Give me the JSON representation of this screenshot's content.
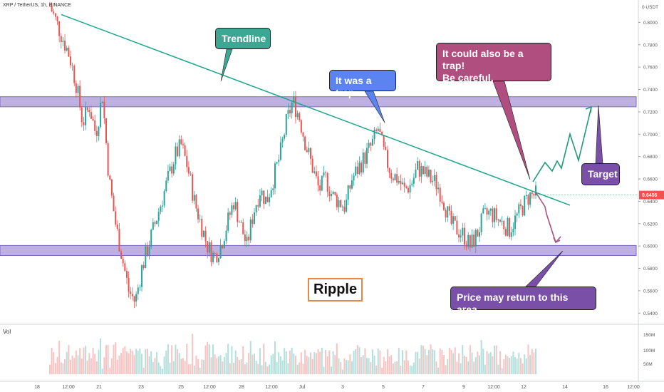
{
  "symbol": "XRP / TetherUS, 1h, BINANCE",
  "price_axis_currency": "USDT",
  "volume_label": "Vol",
  "annotations": {
    "trendline": "Trendline",
    "trap": "It was a trap",
    "also_trap_line1": "It could also be a trap!",
    "also_trap_line2": "Be careful.",
    "target": "Target",
    "return_area": "Price may return to this area",
    "ripple": "Ripple"
  },
  "colors": {
    "up": "#26a69a",
    "down": "#ef5350",
    "trendline": "#1aa58e",
    "zone_fill": "#b3a3dc",
    "zone_stroke": "#7b68c0",
    "trendline_label": "#3ca893",
    "trap_label": "#5b84f0",
    "also_trap_label": "#b04f7f",
    "target_label": "#7a4fa8",
    "return_label": "#7a4fa8",
    "green_projection": "#1f9b78",
    "red_projection": "#b04f7f",
    "price_badge": "#ef5350"
  },
  "chart_data": {
    "type": "candlestick",
    "y_axis": {
      "min": 0.53,
      "max": 0.82,
      "ticks": [
        "0.5400",
        "0.5600",
        "0.5800",
        "0.6000",
        "0.6200",
        "0.6400",
        "0.6600",
        "0.6800",
        "0.7000",
        "0.7200",
        "0.7400",
        "0.7600",
        "0.7800",
        "0.8000"
      ],
      "current_price": "0.6456",
      "top_label": "0 USDT"
    },
    "x_axis": {
      "ticks": [
        "18",
        "12:00",
        "21",
        "23",
        "25",
        "12:00",
        "28",
        "12:00",
        "Jul",
        "3",
        "5",
        "7",
        "9",
        "12:00",
        "12",
        "14",
        "16",
        "12:00"
      ]
    },
    "volume_axis": {
      "ticks": [
        "150M",
        "100M",
        "50M"
      ]
    },
    "zones": [
      {
        "name": "resistance",
        "from": 0.7245,
        "to": 0.7335
      },
      {
        "name": "support",
        "from": 0.5915,
        "to": 0.6005
      }
    ],
    "close_path": [
      0.815,
      0.8,
      0.785,
      0.77,
      0.745,
      0.71,
      0.725,
      0.7,
      0.735,
      0.66,
      0.62,
      0.59,
      0.56,
      0.55,
      0.58,
      0.6,
      0.62,
      0.64,
      0.66,
      0.68,
      0.69,
      0.67,
      0.64,
      0.62,
      0.6,
      0.59,
      0.6,
      0.62,
      0.64,
      0.62,
      0.6,
      0.63,
      0.65,
      0.64,
      0.66,
      0.68,
      0.71,
      0.73,
      0.715,
      0.69,
      0.67,
      0.65,
      0.66,
      0.645,
      0.64,
      0.635,
      0.66,
      0.67,
      0.68,
      0.69,
      0.705,
      0.68,
      0.665,
      0.66,
      0.65,
      0.655,
      0.67,
      0.665,
      0.66,
      0.655,
      0.64,
      0.62,
      0.615,
      0.61,
      0.6,
      0.61,
      0.625,
      0.63,
      0.625,
      0.62,
      0.615,
      0.625,
      0.635,
      0.645,
      0.6456
    ]
  }
}
